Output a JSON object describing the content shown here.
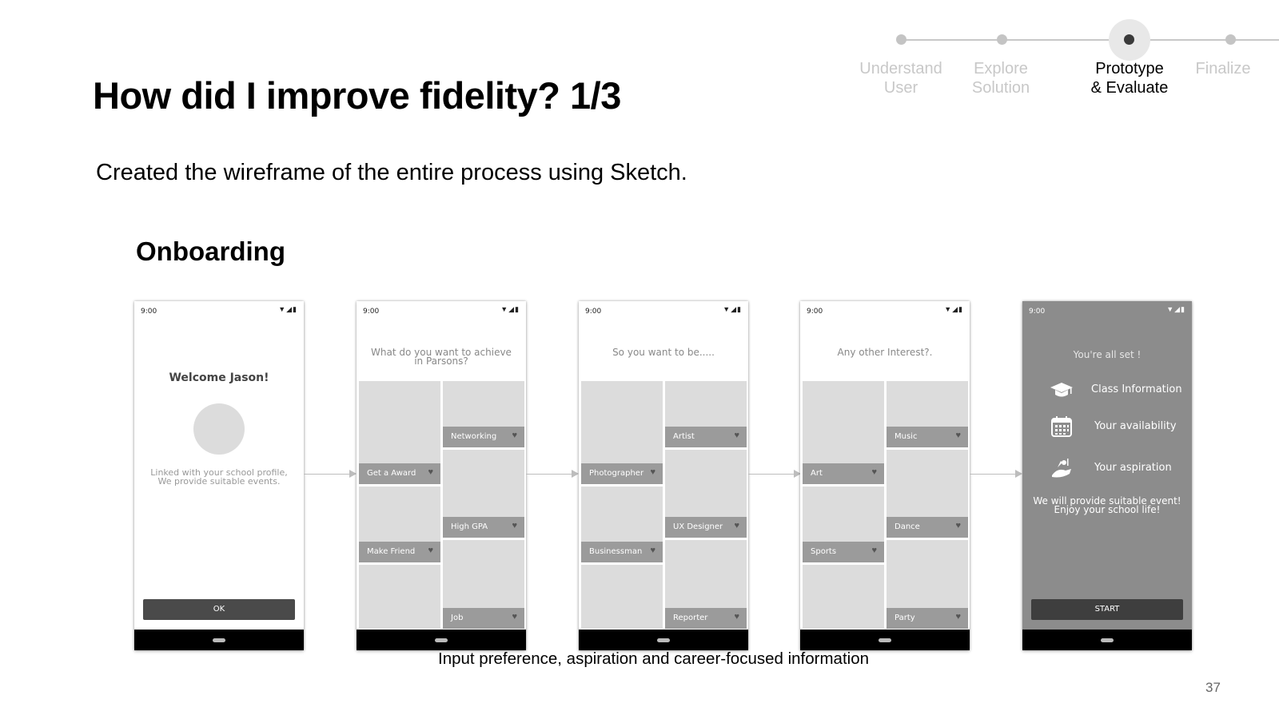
{
  "title": "How did I improve fidelity? 1/3",
  "subtitle": "Created the wireframe of the entire process using Sketch.",
  "section": "Onboarding",
  "caption": "Input preference, aspiration and career-focused information",
  "page_number": "37",
  "stepper": {
    "steps": [
      {
        "line1": "Understand",
        "line2": "User"
      },
      {
        "line1": "Explore",
        "line2": "Solution"
      },
      {
        "line1": "Prototype",
        "line2": "& Evaluate"
      },
      {
        "line1": "Finalize",
        "line2": ""
      }
    ],
    "active_index": 2
  },
  "phones": {
    "status_time": "9:00",
    "welcome": {
      "heading": "Welcome Jason!",
      "body_line1": "Linked with your school profile,",
      "body_line2": "We provide suitable events.",
      "button": "OK"
    },
    "achieve": {
      "question_line1": "What do you want to achieve",
      "question_line2": "in Parsons?",
      "tiles": [
        "Get a Award",
        "Make Friend",
        "Networking",
        "High GPA",
        "Job"
      ]
    },
    "career": {
      "question": "So you want to be.....",
      "tiles": [
        "Photographer",
        "Businessman",
        "Artist",
        "UX Designer",
        "Reporter"
      ]
    },
    "interest": {
      "question": "Any other Interest?.",
      "tiles": [
        "Art",
        "Sports",
        "Music",
        "Dance",
        "Party"
      ]
    },
    "final": {
      "title": "You're all set !",
      "items": [
        "Class Information",
        "Your availability",
        "Your aspiration"
      ],
      "icons": [
        "graduation-cap-icon",
        "calendar-icon",
        "aspiration-icon"
      ],
      "message_line1": "We will provide suitable event!",
      "message_line2": "Enjoy your school life!",
      "button": "START"
    }
  }
}
